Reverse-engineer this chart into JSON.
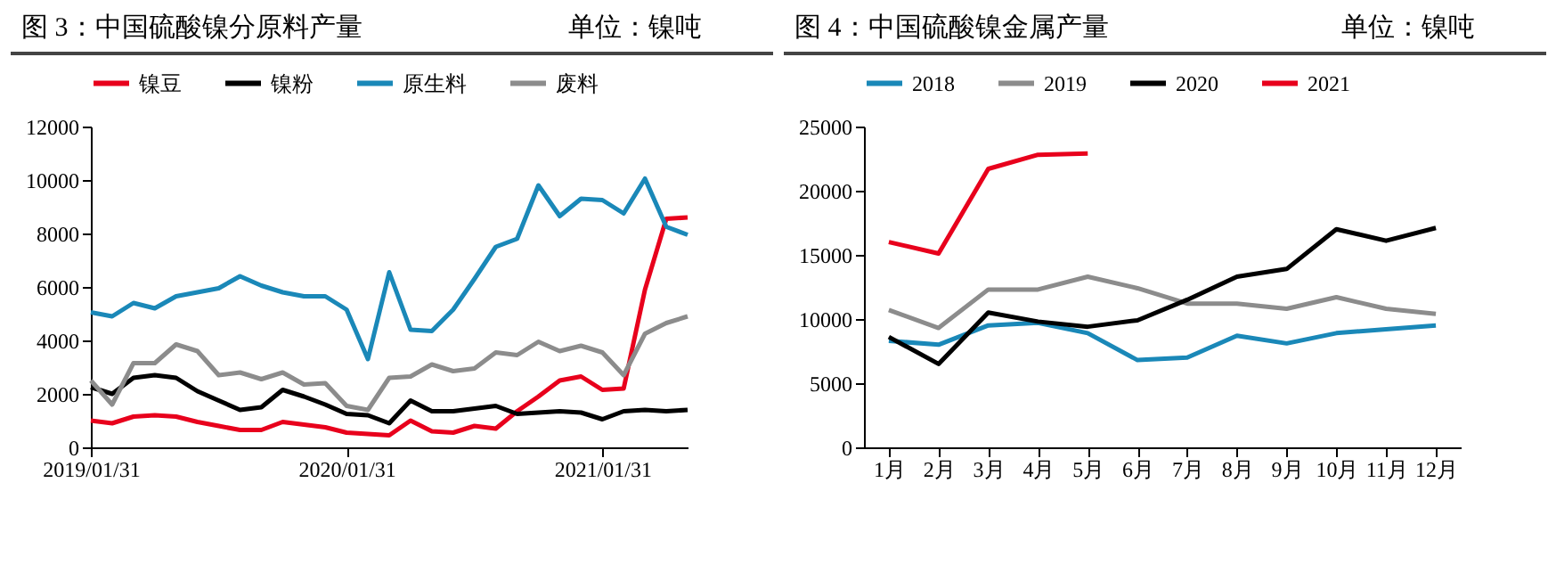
{
  "chart_data": [
    {
      "type": "line",
      "title": "图 3：中国硫酸镍分原料产量",
      "subtitle": "单位：镍吨",
      "categories": [
        "2019/01/31",
        null,
        null,
        null,
        null,
        null,
        null,
        null,
        null,
        null,
        null,
        null,
        "2020/01/31",
        null,
        null,
        null,
        null,
        null,
        null,
        null,
        null,
        null,
        null,
        null,
        "2021/01/31",
        null,
        null,
        null,
        null
      ],
      "series": [
        {
          "name": "镍豆",
          "color": "#e8001c",
          "values": [
            1000,
            900,
            1150,
            1200,
            1150,
            950,
            800,
            650,
            650,
            950,
            850,
            750,
            550,
            500,
            450,
            1000,
            600,
            550,
            800,
            700,
            1350,
            1900,
            2500,
            2650,
            2150,
            2200,
            5900,
            8550,
            8600
          ]
        },
        {
          "name": "镍粉",
          "color": "#000000",
          "values": [
            2250,
            2000,
            2600,
            2700,
            2600,
            2100,
            1750,
            1400,
            1500,
            2150,
            1900,
            1600,
            1250,
            1200,
            900,
            1750,
            1350,
            1350,
            1450,
            1550,
            1250,
            1300,
            1350,
            1300,
            1050,
            1350,
            1400,
            1350,
            1400
          ]
        },
        {
          "name": "原生料",
          "color": "#1a88b8",
          "values": [
            5050,
            4900,
            5400,
            5200,
            5650,
            5800,
            5950,
            6400,
            6050,
            5800,
            5650,
            5650,
            5150,
            3300,
            6550,
            4400,
            4350,
            5150,
            6300,
            7500,
            7800,
            9800,
            8650,
            9300,
            9250,
            8750,
            10050,
            8250,
            7950
          ]
        },
        {
          "name": "废料",
          "color": "#8c8c8c",
          "values": [
            2500,
            1600,
            3150,
            3150,
            3850,
            3600,
            2700,
            2800,
            2550,
            2800,
            2350,
            2400,
            1550,
            1400,
            2600,
            2650,
            3100,
            2850,
            2950,
            3550,
            3450,
            3950,
            3600,
            3800,
            3550,
            2700,
            4250,
            4650,
            4900
          ]
        }
      ],
      "ylim": [
        0,
        12000
      ],
      "yticks": [
        0,
        2000,
        4000,
        6000,
        8000,
        10000,
        12000
      ],
      "grid": false,
      "legend": "top"
    },
    {
      "type": "line",
      "title": "图 4：中国硫酸镍金属产量",
      "subtitle": "单位：镍吨",
      "categories": [
        "1月",
        "2月",
        "3月",
        "4月",
        "5月",
        "6月",
        "7月",
        "8月",
        "9月",
        "10月",
        "11月",
        "12月"
      ],
      "series": [
        {
          "name": "2018",
          "color": "#1a88b8",
          "values": [
            8300,
            8000,
            9500,
            9700,
            8900,
            6800,
            7000,
            8700,
            8100,
            8900,
            9200,
            9500
          ]
        },
        {
          "name": "2019",
          "color": "#8c8c8c",
          "values": [
            10700,
            9300,
            12300,
            12300,
            13300,
            12400,
            11200,
            11200,
            10800,
            11700,
            10800,
            10400
          ]
        },
        {
          "name": "2020",
          "color": "#000000",
          "values": [
            8600,
            6500,
            10500,
            9800,
            9400,
            9900,
            11500,
            13300,
            13900,
            17000,
            16100,
            17100
          ]
        },
        {
          "name": "2021",
          "color": "#e8001c",
          "values": [
            16000,
            15100,
            21700,
            22800,
            22900,
            null,
            null,
            null,
            null,
            null,
            null,
            null
          ]
        }
      ],
      "ylim": [
        0,
        25000
      ],
      "yticks": [
        0,
        5000,
        10000,
        15000,
        20000,
        25000
      ],
      "grid": false,
      "legend": "top"
    }
  ]
}
